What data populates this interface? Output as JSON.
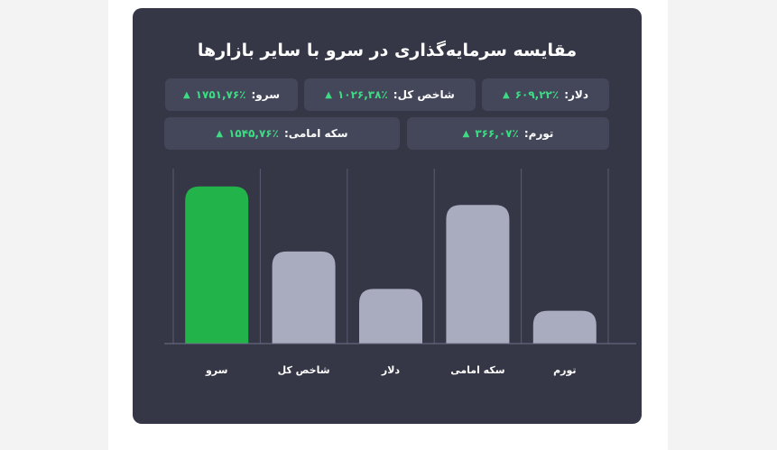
{
  "card": {
    "title": "مقایسه سرمایه‌گذاری در سرو با سایر بازارها"
  },
  "stats": [
    {
      "label": "دلار:",
      "value": "۶۰۹,۲۲٪",
      "arrow": "▲"
    },
    {
      "label": "شاخص کل:",
      "value": "۱۰۲۶,۳۸٪",
      "arrow": "▲"
    },
    {
      "label": "سرو:",
      "value": "۱۷۵۱,۷۶٪",
      "arrow": "▲"
    },
    {
      "label": "تورم:",
      "value": "۳۶۶,۰۷٪",
      "arrow": "▲"
    },
    {
      "label": "سکه امامی:",
      "value": "۱۵۴۵,۷۶٪",
      "arrow": "▲"
    }
  ],
  "colors": {
    "highlight": "#22b34b",
    "bar": "#a9abbe",
    "positive": "#3ddc84"
  },
  "chart_data": {
    "type": "bar",
    "title": "مقایسه سرمایه‌گذاری در سرو با سایر بازارها",
    "categories": [
      "سرو",
      "شاخص کل",
      "دلار",
      "سکه امامی",
      "تورم"
    ],
    "values": [
      1751.76,
      1026.38,
      609.22,
      1545.76,
      366.07
    ],
    "highlight_category": "سرو",
    "xlabel": "",
    "ylabel": "",
    "ylim": [
      0,
      1800
    ],
    "grid": false,
    "legend": "none"
  }
}
